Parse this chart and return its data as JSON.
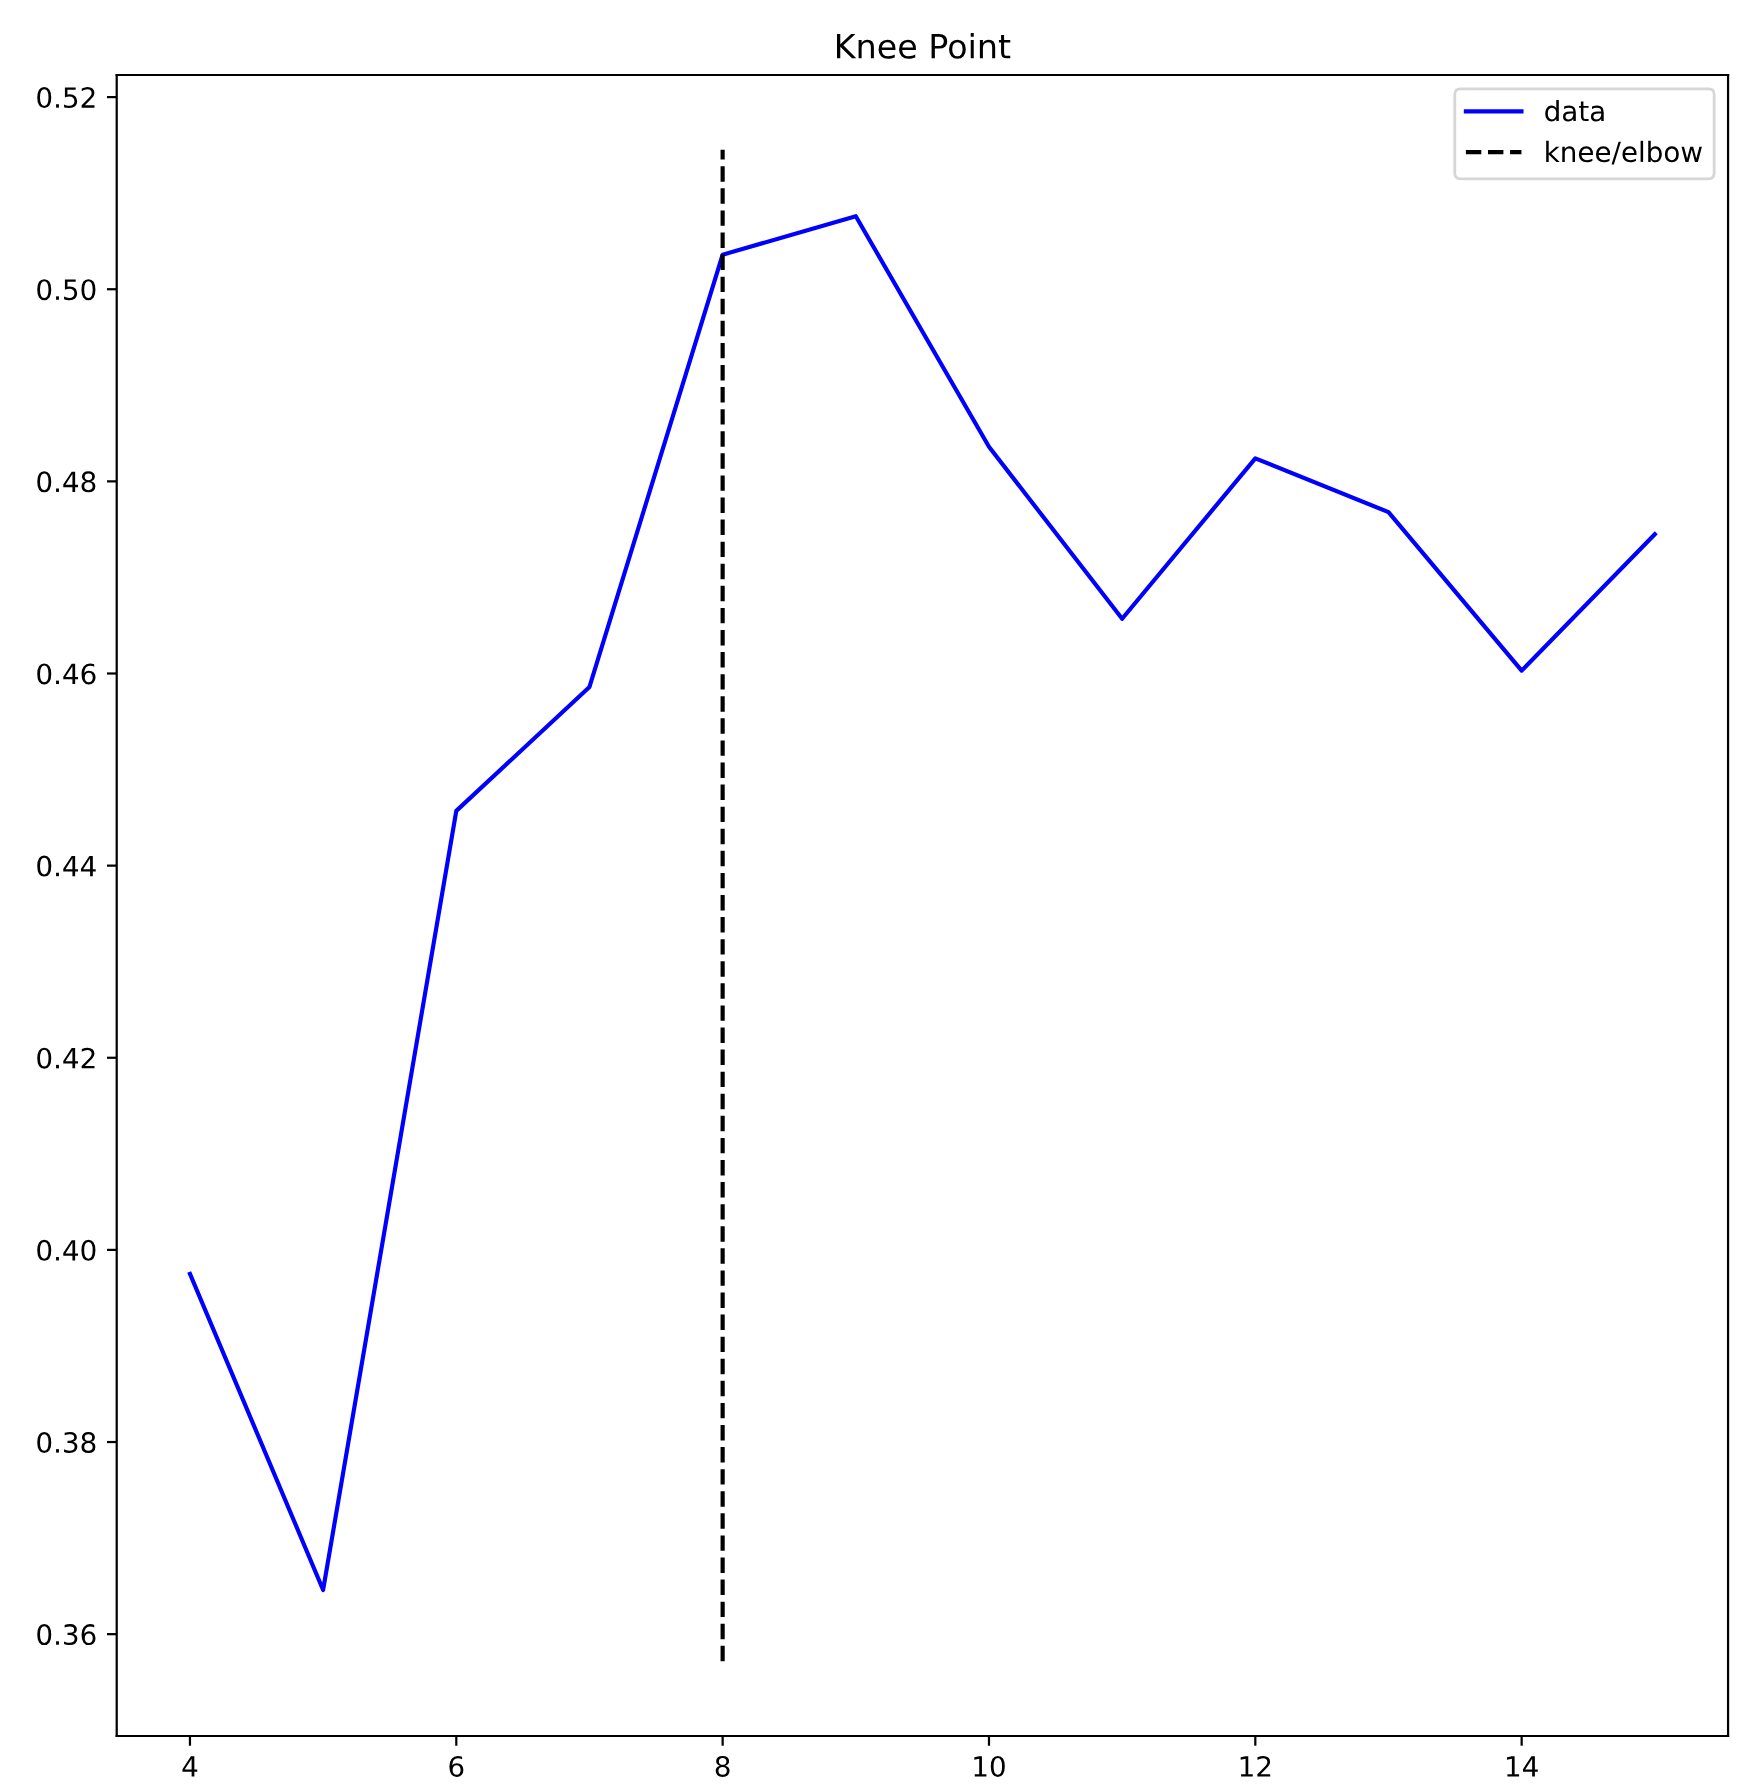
{
  "chart_data": {
    "type": "line",
    "title": "Knee Point",
    "x": [
      4,
      5,
      6,
      7,
      8,
      9,
      10,
      11,
      12,
      13,
      14,
      15
    ],
    "series": [
      {
        "name": "data",
        "color": "#0000ff",
        "values": [
          0.3975,
          0.3646,
          0.4457,
          0.4586,
          0.5036,
          0.5076,
          0.4836,
          0.4657,
          0.4824,
          0.4768,
          0.4603,
          0.4745
        ]
      }
    ],
    "ref_lines": [
      {
        "axis": "x",
        "value": 8,
        "label": "knee/elbow",
        "color": "#000000",
        "line_style": "dashed"
      }
    ],
    "xlim": [
      3.45,
      15.55
    ],
    "xticks": [
      4,
      6,
      8,
      10,
      12,
      14
    ],
    "ylim": [
      0.3494,
      0.5223
    ],
    "yticks": [
      {
        "value": 0.36,
        "label": "0.36"
      },
      {
        "value": 0.38,
        "label": "0.38"
      },
      {
        "value": 0.4,
        "label": "0.40"
      },
      {
        "value": 0.42,
        "label": "0.42"
      },
      {
        "value": 0.44,
        "label": "0.44"
      },
      {
        "value": 0.46,
        "label": "0.46"
      },
      {
        "value": 0.48,
        "label": "0.48"
      },
      {
        "value": 0.5,
        "label": "0.50"
      },
      {
        "value": 0.52,
        "label": "0.52"
      }
    ],
    "legend": "top right",
    "grid": false,
    "marker": "none",
    "line_style": "solid"
  }
}
